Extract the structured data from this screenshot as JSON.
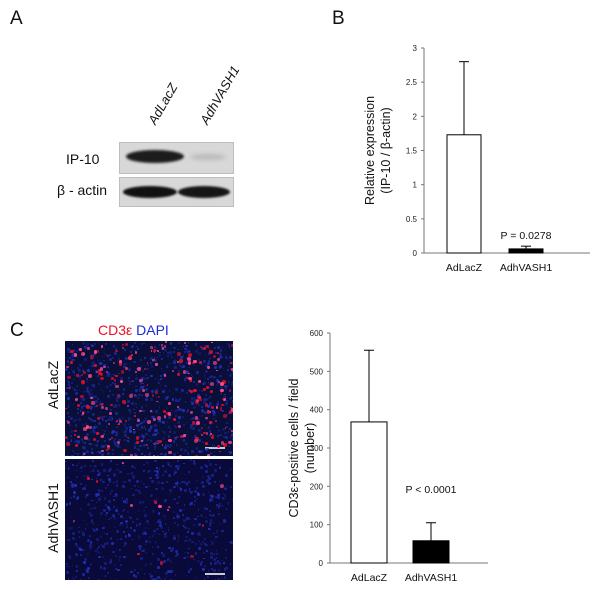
{
  "panels": {
    "a": "A",
    "b": "B",
    "c": "C"
  },
  "panel_a": {
    "lanes": [
      "AdLacZ",
      "AdhVASH1"
    ],
    "row_labels": [
      "IP-10",
      "β - actin"
    ]
  },
  "panel_c_image": {
    "stain_red": "CD3ε",
    "stain_blue": "DAPI",
    "row_labels": [
      "AdLacZ",
      "AdhVASH1"
    ],
    "colors": {
      "red": "#e8102a",
      "blue": "#1b2bd6",
      "tissue": "#0a0f3a"
    }
  },
  "chart_data": [
    {
      "type": "bar",
      "categories": [
        "AdLacZ",
        "AdhVASH1"
      ],
      "values": [
        1.73,
        0.06
      ],
      "errors": [
        1.07,
        0.04
      ],
      "fills": [
        "#ffffff",
        "#000000"
      ],
      "ylabel_lines": [
        "Relative expression",
        "(IP-10 / β-actin)"
      ],
      "ylim": [
        0,
        3
      ],
      "yticks": [
        "0",
        "0.5",
        "1",
        "1.5",
        "2",
        "2.5",
        "3"
      ],
      "annotation": "P = 0.0278"
    },
    {
      "type": "bar",
      "categories": [
        "AdLacZ",
        "AdhVASH1"
      ],
      "values": [
        368,
        58
      ],
      "errors": [
        187,
        47
      ],
      "fills": [
        "#ffffff",
        "#000000"
      ],
      "ylabel_lines": [
        "CD3ε-positive cells / field",
        "(number)"
      ],
      "ylim": [
        0,
        600
      ],
      "yticks": [
        "0",
        "100",
        "200",
        "300",
        "400",
        "500",
        "600"
      ],
      "annotation": "P < 0.0001"
    }
  ]
}
